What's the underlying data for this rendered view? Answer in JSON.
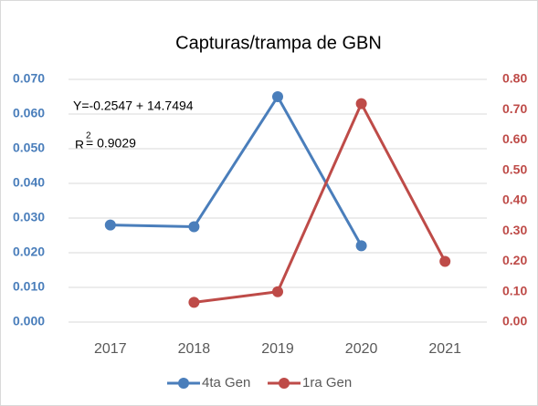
{
  "chart_data": {
    "type": "line",
    "title": "Capturas/trampa de GBN",
    "annotations": [
      "Y=-0.2547 + 14.7494",
      "R",
      "2",
      "= 0.9029"
    ],
    "categories": [
      "2017",
      "2018",
      "2019",
      "2020",
      "2021"
    ],
    "series": [
      {
        "name": "4ta Gen",
        "color": "#4a7ebb",
        "values": [
          0.028,
          0.0275,
          0.065,
          0.022,
          null
        ]
      },
      {
        "name": "1ra Gen",
        "color": "#be4b48",
        "axis": "y2",
        "values": [
          null,
          0.065,
          0.1,
          0.72,
          0.2
        ]
      }
    ],
    "ylim": [
      0,
      0.07
    ],
    "yticks": [
      {
        "value": 0,
        "label": "0.000"
      },
      {
        "value": 0.01,
        "label": "0.010"
      },
      {
        "value": 0.02,
        "label": "0.020"
      },
      {
        "value": 0.03,
        "label": "0.030"
      },
      {
        "value": 0.04,
        "label": "0.040"
      },
      {
        "value": 0.05,
        "label": "0.050"
      },
      {
        "value": 0.06,
        "label": "0.060"
      },
      {
        "value": 0.07,
        "label": "0.070"
      }
    ],
    "y2lim": [
      0,
      0.8
    ],
    "y2ticks": [
      {
        "value": 0,
        "label": "0.00"
      },
      {
        "value": 0.1,
        "label": "0.10"
      },
      {
        "value": 0.2,
        "label": "0.20"
      },
      {
        "value": 0.3,
        "label": "0.30"
      },
      {
        "value": 0.4,
        "label": "0.40"
      },
      {
        "value": 0.5,
        "label": "0.50"
      },
      {
        "value": 0.6,
        "label": "0.60"
      },
      {
        "value": 0.7,
        "label": "0.70"
      },
      {
        "value": 0.8,
        "label": "0.80"
      }
    ],
    "grid": true,
    "legend": "bottom"
  }
}
